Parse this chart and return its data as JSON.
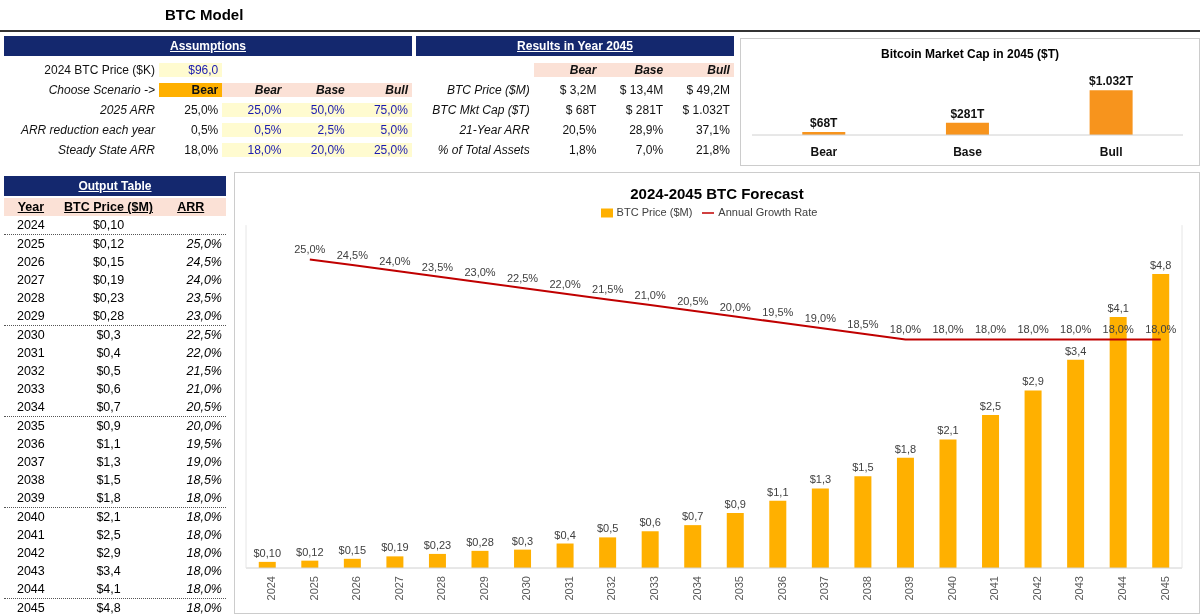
{
  "chart_data": [
    {
      "type": "other",
      "title": "BTC Model"
    },
    {
      "type": "other",
      "title": "Assumptions",
      "annotations": [
        "2024 BTC Price ($K)",
        "$96,0",
        null,
        null,
        null,
        "Choose Scenario ->",
        "Bear",
        "Bear",
        "Base",
        "Bull",
        "2025 ARR",
        "25,0%",
        "25,0%",
        "50,0%",
        "75,0%",
        "ARR reduction each year",
        "0,5%",
        "0,5%",
        "2,5%",
        "5,0%",
        "Steady State ARR",
        "18,0%",
        "18,0%",
        "20,0%",
        "25,0%"
      ]
    },
    {
      "type": "other",
      "title": "Results in Year 2045",
      "annotations": [
        null,
        "Bear",
        "Base",
        "Bull",
        "BTC Price ($M)",
        "$ 3,2M",
        "$ 13,4M",
        "$ 49,2M",
        "BTC Mkt Cap ($T)",
        "$ 68T",
        "$ 281T",
        "$ 1.032T",
        "21-Year ARR",
        "20,5%",
        "28,9%",
        "37,1%",
        "% of Total Assets",
        "1,8%",
        "7,0%",
        "21,8%"
      ]
    },
    {
      "type": "bar",
      "title": "Bitcoin Market Cap in 2045 ($T)",
      "categories": [
        "Bear",
        "Base",
        "Bull"
      ],
      "values": [
        68,
        281,
        1032
      ],
      "value_labels": [
        "$68T",
        "$281T",
        "$1.032T"
      ],
      "color": "#f7941d",
      "tick_labels": "x"
    },
    {
      "type": "heatmap",
      "title": "Output Table",
      "ylabel": "Year",
      "categories": [
        "BTC Price ($M)",
        "ARR"
      ],
      "y_categories": [
        "2024",
        "2025",
        "2026",
        "2027",
        "2028",
        "2029",
        "2030",
        "2031",
        "2032",
        "2033",
        "2034",
        "2035",
        "2036",
        "2037",
        "2038",
        "2039",
        "2040",
        "2041",
        "2042",
        "2043",
        "2044",
        "2045"
      ],
      "cells": [
        [
          "$0,10",
          null
        ],
        [
          "$0,12",
          "25,0%"
        ],
        [
          "$0,15",
          "24,5%"
        ],
        [
          "$0,19",
          "24,0%"
        ],
        [
          "$0,23",
          "23,5%"
        ],
        [
          "$0,28",
          "23,0%"
        ],
        [
          "$0,3",
          "22,5%"
        ],
        [
          "$0,4",
          "22,0%"
        ],
        [
          "$0,5",
          "21,5%"
        ],
        [
          "$0,6",
          "21,0%"
        ],
        [
          "$0,7",
          "20,5%"
        ],
        [
          "$0,9",
          "20,0%"
        ],
        [
          "$1,1",
          "19,5%"
        ],
        [
          "$1,3",
          "19,0%"
        ],
        [
          "$1,5",
          "18,5%"
        ],
        [
          "$1,8",
          "18,0%"
        ],
        [
          "$2,1",
          "18,0%"
        ],
        [
          "$2,5",
          "18,0%"
        ],
        [
          "$2,9",
          "18,0%"
        ],
        [
          "$3,4",
          "18,0%"
        ],
        [
          "$4,1",
          "18,0%"
        ],
        [
          "$4,8",
          "18,0%"
        ]
      ]
    },
    {
      "type": "bar",
      "title": "2024-2045 BTC Forecast",
      "categories": [
        "2024",
        "2025",
        "2026",
        "2027",
        "2028",
        "2029",
        "2030",
        "2031",
        "2032",
        "2033",
        "2034",
        "2035",
        "2036",
        "2037",
        "2038",
        "2039",
        "2040",
        "2041",
        "2042",
        "2043",
        "2044",
        "2045"
      ],
      "legend": "top",
      "marker": "none",
      "tick_labels": "x",
      "ylim": [
        0,
        5.6
      ],
      "y2lim": [
        -2,
        28
      ],
      "series": [
        {
          "name": "BTC Price ($M)",
          "color": "#ffb000",
          "values": [
            0.1,
            0.12,
            0.15,
            0.19,
            0.23,
            0.28,
            0.3,
            0.4,
            0.5,
            0.6,
            0.7,
            0.9,
            1.1,
            1.3,
            1.5,
            1.8,
            2.1,
            2.5,
            2.9,
            3.4,
            4.1,
            4.8
          ],
          "value_labels": [
            "$0,10",
            "$0,12",
            "$0,15",
            "$0,19",
            "$0,23",
            "$0,28",
            "$0,3",
            "$0,4",
            "$0,5",
            "$0,6",
            "$0,7",
            "$0,9",
            "$1,1",
            "$1,3",
            "$1,5",
            "$1,8",
            "$2,1",
            "$2,5",
            "$2,9",
            "$3,4",
            "$4,1",
            "$4,8"
          ]
        },
        {
          "name": "Annual Growth Rate",
          "type": "line",
          "axis": "y2",
          "color": "#c00000",
          "values": [
            null,
            25.0,
            24.5,
            24.0,
            23.5,
            23.0,
            22.5,
            22.0,
            21.5,
            21.0,
            20.5,
            20.0,
            19.5,
            19.0,
            18.5,
            18.0,
            18.0,
            18.0,
            18.0,
            18.0,
            18.0,
            18.0
          ],
          "value_labels": [
            null,
            "25,0%",
            "24,5%",
            "24,0%",
            "23,5%",
            "23,0%",
            "22,5%",
            "22,0%",
            "21,5%",
            "21,0%",
            "20,5%",
            "20,0%",
            "19,5%",
            "19,0%",
            "18,5%",
            "18,0%",
            "18,0%",
            "18,0%",
            "18,0%",
            "18,0%",
            "18,0%",
            "18,0%"
          ]
        }
      ]
    }
  ]
}
